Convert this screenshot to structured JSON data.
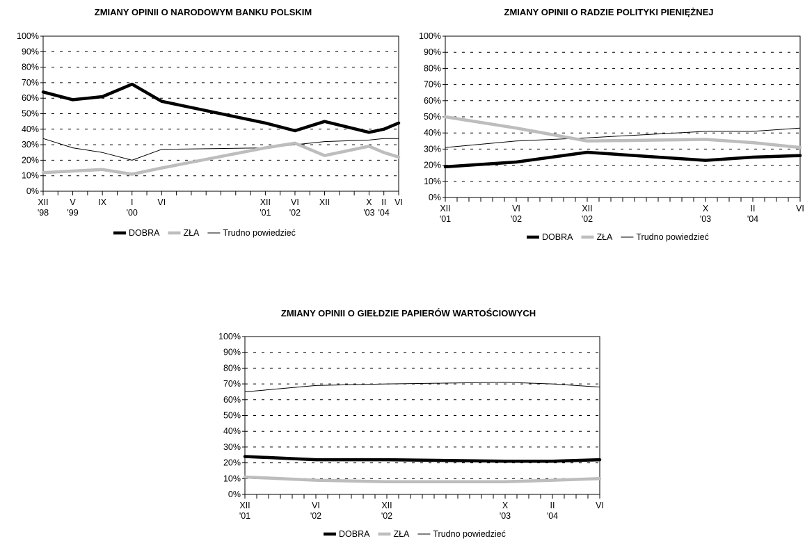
{
  "chart_data": [
    {
      "type": "line",
      "title": "ZMIANY OPINII O NARODOWYM BANKU POLSKIM",
      "ylim": [
        0,
        100
      ],
      "y_ticks": [
        "0%",
        "10%",
        "20%",
        "30%",
        "40%",
        "50%",
        "60%",
        "70%",
        "80%",
        "90%",
        "100%"
      ],
      "grid": "dashed horizontal",
      "x_count": 24,
      "x_labels": [
        {
          "i": 0,
          "l1": "XII",
          "l2": "'98"
        },
        {
          "i": 2,
          "l1": "V",
          "l2": "'99"
        },
        {
          "i": 4,
          "l1": "IX",
          "l2": ""
        },
        {
          "i": 6,
          "l1": "I",
          "l2": "'00"
        },
        {
          "i": 8,
          "l1": "VI",
          "l2": ""
        },
        {
          "i": 15,
          "l1": "XII",
          "l2": "'01"
        },
        {
          "i": 17,
          "l1": "VI",
          "l2": "'02"
        },
        {
          "i": 19,
          "l1": "XII",
          "l2": ""
        },
        {
          "i": 22,
          "l1": "X",
          "l2": "'03"
        },
        {
          "i": 23,
          "l1": "II",
          "l2": "'04"
        },
        {
          "i": 24,
          "l1": "VI",
          "l2": ""
        }
      ],
      "series": [
        {
          "name": "DOBRA",
          "color": "#000000",
          "width": 4.5,
          "points": [
            [
              0,
              64
            ],
            [
              2,
              59
            ],
            [
              4,
              61
            ],
            [
              6,
              69
            ],
            [
              8,
              58
            ],
            [
              15,
              44
            ],
            [
              17,
              39
            ],
            [
              19,
              45
            ],
            [
              22,
              38
            ],
            [
              23,
              40
            ],
            [
              24,
              44
            ]
          ]
        },
        {
          "name": "ZŁA",
          "color": "#bdbdbd",
          "width": 4.5,
          "points": [
            [
              0,
              12
            ],
            [
              2,
              13
            ],
            [
              4,
              14
            ],
            [
              6,
              11
            ],
            [
              8,
              15
            ],
            [
              15,
              28
            ],
            [
              17,
              31
            ],
            [
              19,
              23
            ],
            [
              22,
              29
            ],
            [
              23,
              25
            ],
            [
              24,
              22
            ]
          ]
        },
        {
          "name": "Trudno powiedzieć",
          "color": "#000000",
          "width": 1,
          "points": [
            [
              0,
              34
            ],
            [
              2,
              28
            ],
            [
              4,
              25
            ],
            [
              6,
              20
            ],
            [
              8,
              27
            ],
            [
              15,
              28
            ],
            [
              17,
              30
            ],
            [
              19,
              32
            ],
            [
              22,
              33
            ],
            [
              23,
              34
            ],
            [
              24,
              34
            ]
          ]
        }
      ]
    },
    {
      "type": "line",
      "title": "ZMIANY OPINII O RADZIE POLITYKI PIENIĘŻNEJ",
      "ylim": [
        0,
        100
      ],
      "y_ticks": [
        "0%",
        "10%",
        "20%",
        "30%",
        "40%",
        "50%",
        "60%",
        "70%",
        "80%",
        "90%",
        "100%"
      ],
      "grid": "dashed horizontal",
      "x_count": 24,
      "x_labels": [
        {
          "i": 0,
          "l1": "XII",
          "l2": "'01"
        },
        {
          "i": 6,
          "l1": "VI",
          "l2": "'02"
        },
        {
          "i": 12,
          "l1": "XII",
          "l2": "'02"
        },
        {
          "i": 22,
          "l1": "X",
          "l2": "'03"
        },
        {
          "i": 26,
          "l1": "II",
          "l2": "'04"
        },
        {
          "i": 30,
          "l1": "VI",
          "l2": ""
        }
      ],
      "series": [
        {
          "name": "DOBRA",
          "color": "#000000",
          "width": 4.5,
          "points": [
            [
              0,
              19
            ],
            [
              6,
              22
            ],
            [
              12,
              28
            ],
            [
              22,
              23
            ],
            [
              26,
              25
            ],
            [
              30,
              26
            ]
          ]
        },
        {
          "name": "ZŁA",
          "color": "#bdbdbd",
          "width": 4.5,
          "points": [
            [
              0,
              50
            ],
            [
              6,
              43
            ],
            [
              12,
              35
            ],
            [
              22,
              36
            ],
            [
              26,
              34
            ],
            [
              30,
              31
            ]
          ]
        },
        {
          "name": "Trudno powiedzieć",
          "color": "#000000",
          "width": 1,
          "points": [
            [
              0,
              31
            ],
            [
              6,
              35
            ],
            [
              12,
              37
            ],
            [
              22,
              41
            ],
            [
              26,
              41
            ],
            [
              30,
              43
            ]
          ]
        }
      ]
    },
    {
      "type": "line",
      "title": "ZMIANY OPINII O GIEŁDZIE PAPIERÓW WARTOŚCIOWYCH",
      "ylim": [
        0,
        100
      ],
      "y_ticks": [
        "0%",
        "10%",
        "20%",
        "30%",
        "40%",
        "50%",
        "60%",
        "70%",
        "80%",
        "90%",
        "100%"
      ],
      "grid": "dashed horizontal",
      "x_count": 24,
      "x_labels": [
        {
          "i": 0,
          "l1": "XII",
          "l2": "'01"
        },
        {
          "i": 6,
          "l1": "VI",
          "l2": "'02"
        },
        {
          "i": 12,
          "l1": "XII",
          "l2": "'02"
        },
        {
          "i": 22,
          "l1": "X",
          "l2": "'03"
        },
        {
          "i": 26,
          "l1": "II",
          "l2": "'04"
        },
        {
          "i": 30,
          "l1": "VI",
          "l2": ""
        }
      ],
      "series": [
        {
          "name": "DOBRA",
          "color": "#000000",
          "width": 4.5,
          "points": [
            [
              0,
              24
            ],
            [
              6,
              22
            ],
            [
              12,
              22
            ],
            [
              22,
              21
            ],
            [
              26,
              21
            ],
            [
              30,
              22
            ]
          ]
        },
        {
          "name": "ZŁA",
          "color": "#bdbdbd",
          "width": 4.5,
          "points": [
            [
              0,
              11
            ],
            [
              6,
              9
            ],
            [
              12,
              8
            ],
            [
              22,
              8
            ],
            [
              26,
              9
            ],
            [
              30,
              10
            ]
          ]
        },
        {
          "name": "Trudno powiedzieć",
          "color": "#000000",
          "width": 1,
          "points": [
            [
              0,
              65
            ],
            [
              6,
              69
            ],
            [
              12,
              70
            ],
            [
              22,
              71
            ],
            [
              26,
              70
            ],
            [
              30,
              68
            ]
          ]
        }
      ]
    }
  ],
  "legend": [
    {
      "label": "DOBRA",
      "color": "#000000",
      "width": 4.5
    },
    {
      "label": "ZŁA",
      "color": "#bdbdbd",
      "width": 4.5
    },
    {
      "label": "Trudno powiedzieć",
      "color": "#000000",
      "width": 1
    }
  ]
}
